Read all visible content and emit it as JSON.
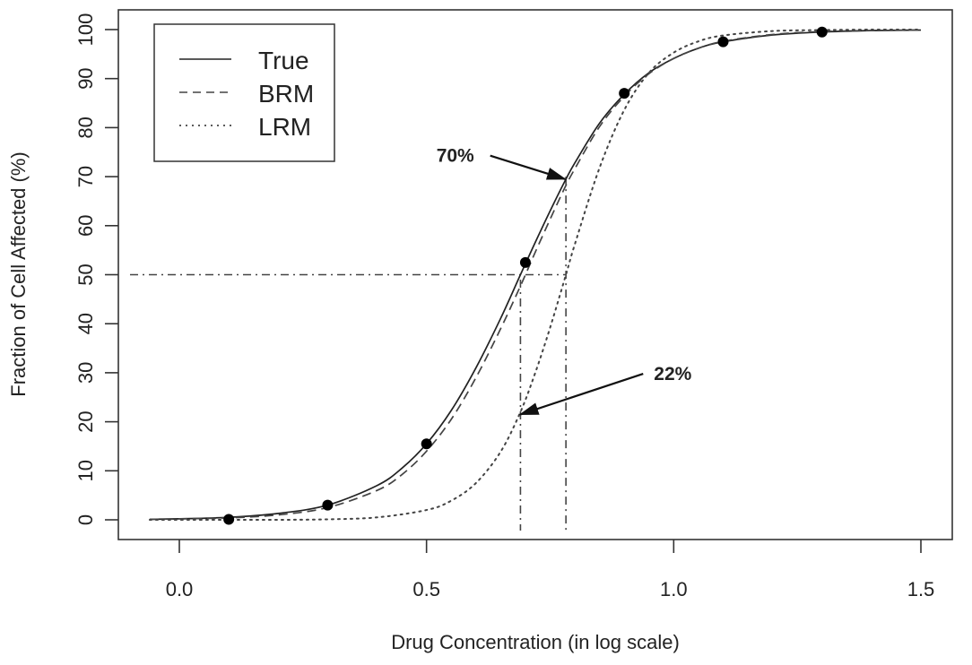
{
  "chart_data": {
    "type": "line",
    "title": "",
    "xlabel": "Drug Concentration (in log scale)",
    "ylabel": "Fraction of Cell Affected (%)",
    "xlim": [
      -0.12,
      1.565
    ],
    "ylim": [
      -4,
      104
    ],
    "x_ticks": [
      0.0,
      0.5,
      1.0,
      1.5
    ],
    "x_tick_labels": [
      "0.0",
      "0.5",
      "1.0",
      "1.5"
    ],
    "y_ticks": [
      0,
      10,
      20,
      30,
      40,
      50,
      60,
      70,
      80,
      90,
      100
    ],
    "y_tick_labels": [
      "0",
      "10",
      "20",
      "30",
      "40",
      "50",
      "60",
      "70",
      "80",
      "90",
      "100"
    ],
    "grid": false,
    "legend_position": "top-left",
    "series": [
      {
        "name": "True",
        "style": "solid",
        "color": "#222222",
        "x": [
          -0.06,
          0.0,
          0.1,
          0.2,
          0.3,
          0.4,
          0.45,
          0.5,
          0.55,
          0.6,
          0.65,
          0.69,
          0.72,
          0.75,
          0.78,
          0.8,
          0.85,
          0.9,
          0.95,
          1.0,
          1.05,
          1.1,
          1.2,
          1.3,
          1.4,
          1.5
        ],
        "y": [
          0.1,
          0.2,
          0.5,
          1.3,
          3.0,
          7.0,
          10.5,
          15.5,
          22.3,
          31.0,
          41.1,
          50.0,
          56.6,
          63.0,
          69.1,
          72.8,
          80.9,
          86.8,
          91.2,
          94.1,
          96.2,
          97.5,
          98.9,
          99.5,
          99.8,
          99.9
        ]
      },
      {
        "name": "BRM",
        "style": "dashed",
        "color": "#444444",
        "x": [
          -0.06,
          0.0,
          0.1,
          0.2,
          0.3,
          0.4,
          0.45,
          0.5,
          0.55,
          0.6,
          0.65,
          0.69,
          0.72,
          0.75,
          0.78,
          0.8,
          0.85,
          0.9,
          0.95,
          1.0,
          1.05,
          1.1,
          1.2,
          1.3,
          1.4,
          1.5
        ],
        "y": [
          0.1,
          0.2,
          0.4,
          1.0,
          2.5,
          6.0,
          9.2,
          14.0,
          20.5,
          29.0,
          39.0,
          47.7,
          54.6,
          61.3,
          67.8,
          71.6,
          80.2,
          86.4,
          91.0,
          94.1,
          96.2,
          97.6,
          99.0,
          99.6,
          99.8,
          99.9
        ]
      },
      {
        "name": "LRM",
        "style": "dotted",
        "color": "#444444",
        "x": [
          -0.06,
          0.0,
          0.1,
          0.2,
          0.3,
          0.4,
          0.5,
          0.55,
          0.6,
          0.65,
          0.69,
          0.72,
          0.75,
          0.782,
          0.8,
          0.85,
          0.9,
          0.95,
          1.0,
          1.05,
          1.1,
          1.2,
          1.3,
          1.4,
          1.5
        ],
        "y": [
          0.0,
          0.0,
          0.0,
          0.0,
          0.1,
          0.5,
          2.0,
          3.9,
          7.5,
          13.9,
          22.0,
          30.0,
          39.2,
          50.0,
          56.2,
          71.8,
          83.6,
          91.2,
          95.3,
          97.6,
          98.8,
          99.7,
          99.9,
          100.0,
          100.0
        ]
      }
    ],
    "observed_points": {
      "x": [
        0.1,
        0.3,
        0.5,
        0.7,
        0.9,
        1.1,
        1.3
      ],
      "y": [
        0.1,
        3.0,
        15.5,
        52.5,
        87.0,
        97.5,
        99.5
      ]
    },
    "reference_lines": {
      "horizontal": {
        "y": 50,
        "x_from": -0.1,
        "x_to": 0.782,
        "style": "dashdot"
      },
      "verticals": [
        {
          "x": 0.69,
          "y_from": -2,
          "y_to": 49,
          "style": "dashdot"
        },
        {
          "x": 0.782,
          "y_from": -2,
          "y_to": 70,
          "style": "dashdot"
        }
      ]
    },
    "annotations": [
      {
        "text": "70%",
        "text_x": 0.52,
        "text_y": 73,
        "arrow_to_x": 0.78,
        "arrow_to_y": 69.5
      },
      {
        "text": "22%",
        "text_x": 0.96,
        "text_y": 28.5,
        "arrow_to_x": 0.69,
        "arrow_to_y": 21.5
      }
    ]
  }
}
